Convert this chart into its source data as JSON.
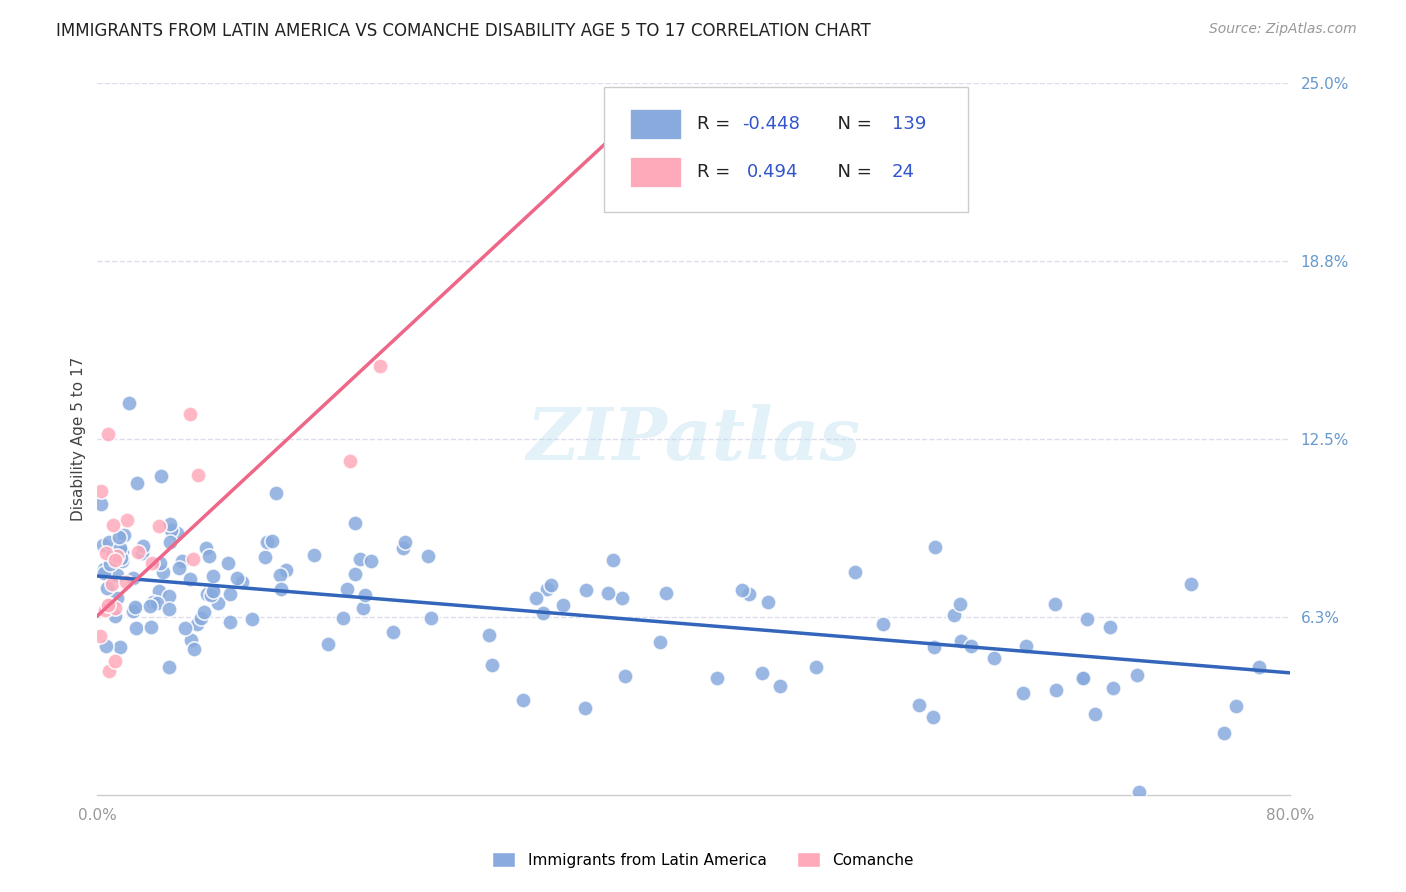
{
  "title": "IMMIGRANTS FROM LATIN AMERICA VS COMANCHE DISABILITY AGE 5 TO 17 CORRELATION CHART",
  "source": "Source: ZipAtlas.com",
  "ylabel": "Disability Age 5 to 17",
  "xlim": [
    0.0,
    0.8
  ],
  "ylim": [
    0.0,
    0.25
  ],
  "ytick_vals": [
    0.0,
    0.0625,
    0.125,
    0.1875,
    0.25
  ],
  "ytick_labels": [
    "",
    "6.3%",
    "12.5%",
    "18.8%",
    "25.0%"
  ],
  "blue_color": "#88AADD",
  "blue_edge_color": "#6688CC",
  "pink_color": "#FFAABB",
  "pink_edge_color": "#EE8899",
  "blue_trend_color": "#3366BB",
  "pink_trend_color": "#EE6688",
  "blue_r": "-0.448",
  "blue_n": "139",
  "pink_r": "0.494",
  "pink_n": "24",
  "legend_label_blue": "Immigrants from Latin America",
  "legend_label_pink": "Comanche",
  "watermark": "ZIPatlas",
  "background_color": "#ffffff",
  "grid_color": "#DDDDEE",
  "title_color": "#222222",
  "title_fontsize": 12,
  "axis_tick_color": "#6699CC",
  "axis_label_color": "#444444",
  "source_color": "#999999",
  "blue_trend_x0": 0.0,
  "blue_trend_y0": 0.077,
  "blue_trend_x1": 0.8,
  "blue_trend_y1": 0.043,
  "pink_trend_x0": 0.0,
  "pink_trend_y0": 0.063,
  "pink_trend_x1": 0.38,
  "pink_trend_y1": 0.248
}
